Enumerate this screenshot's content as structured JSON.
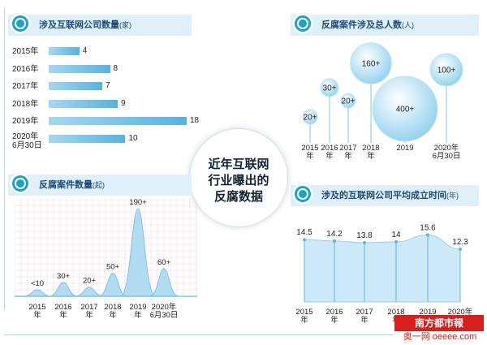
{
  "center_title": [
    "近年互联网",
    "行业曝出的",
    "反腐数据"
  ],
  "logo": {
    "main": "南方都市報",
    "sub": "奥一网 oeeee.com"
  },
  "colors": {
    "bar": "#56b2e2",
    "area_fill": "#cde9f7",
    "accent": "#1aa3c7",
    "logo_red": "#d7201e"
  },
  "chart_data": [
    {
      "type": "bar",
      "orientation": "horizontal",
      "title": "涉及互联网公司数量",
      "title_unit": "(家)",
      "categories": [
        "2015年",
        "2016年",
        "2017年",
        "2018年",
        "2019年",
        "2020年6月30日"
      ],
      "category_lines": [
        [
          "2015年"
        ],
        [
          "2016年"
        ],
        [
          "2017年"
        ],
        [
          "2018年"
        ],
        [
          "2019年"
        ],
        [
          "2020年",
          "6月30日"
        ]
      ],
      "values": [
        4,
        8,
        7,
        9,
        18,
        10
      ],
      "value_labels": [
        "4",
        "8",
        "7",
        "9",
        "18",
        "10"
      ]
    },
    {
      "type": "scatter",
      "style": "bubble",
      "title": "反腐案件涉及总人数",
      "title_unit": "(人)",
      "categories": [
        "2015年",
        "2016年",
        "2017年",
        "2018年",
        "2019",
        "2020年6月30日"
      ],
      "category_lines": [
        [
          "2015",
          "年"
        ],
        [
          "2016",
          "年"
        ],
        [
          "2017",
          "年"
        ],
        [
          "2018",
          "年"
        ],
        [
          "2019"
        ],
        [
          "2020年",
          "6月30日"
        ]
      ],
      "values": [
        20,
        30,
        20,
        160,
        400,
        100
      ],
      "value_labels": [
        "20+",
        "30+",
        "20+",
        "160+",
        "400+",
        "100+"
      ]
    },
    {
      "type": "area",
      "title": "反腐案件数量",
      "title_unit": "(起)",
      "categories": [
        "2015年",
        "2016年",
        "2017年",
        "2018年",
        "2019年",
        "2020年6月30日"
      ],
      "category_lines": [
        [
          "2015",
          "年"
        ],
        [
          "2016",
          "年"
        ],
        [
          "2017",
          "年"
        ],
        [
          "2018",
          "年"
        ],
        [
          "2019",
          "年"
        ],
        [
          "2020年",
          "6月30日"
        ]
      ],
      "values": [
        10,
        30,
        20,
        50,
        190,
        60
      ],
      "value_labels": [
        "<10",
        "30+",
        "20+",
        "50+",
        "190+",
        "60+"
      ]
    },
    {
      "type": "area",
      "title": "涉及的互联网公司平均成立时间",
      "title_unit": "(年)",
      "categories": [
        "2015年",
        "2016年",
        "2017年",
        "2018年",
        "2019年",
        "2020年"
      ],
      "category_lines": [
        [
          "2015",
          "年"
        ],
        [
          "2016",
          "年"
        ],
        [
          "2017",
          "年"
        ],
        [
          "2018",
          "年"
        ],
        [
          "2019",
          "年"
        ],
        [
          "2020年",
          ""
        ]
      ],
      "values": [
        14.5,
        14.2,
        13.8,
        14,
        15.6,
        12.3
      ],
      "value_labels": [
        "14.5",
        "14.2",
        "13.8",
        "14",
        "15.6",
        "12.3"
      ]
    }
  ]
}
